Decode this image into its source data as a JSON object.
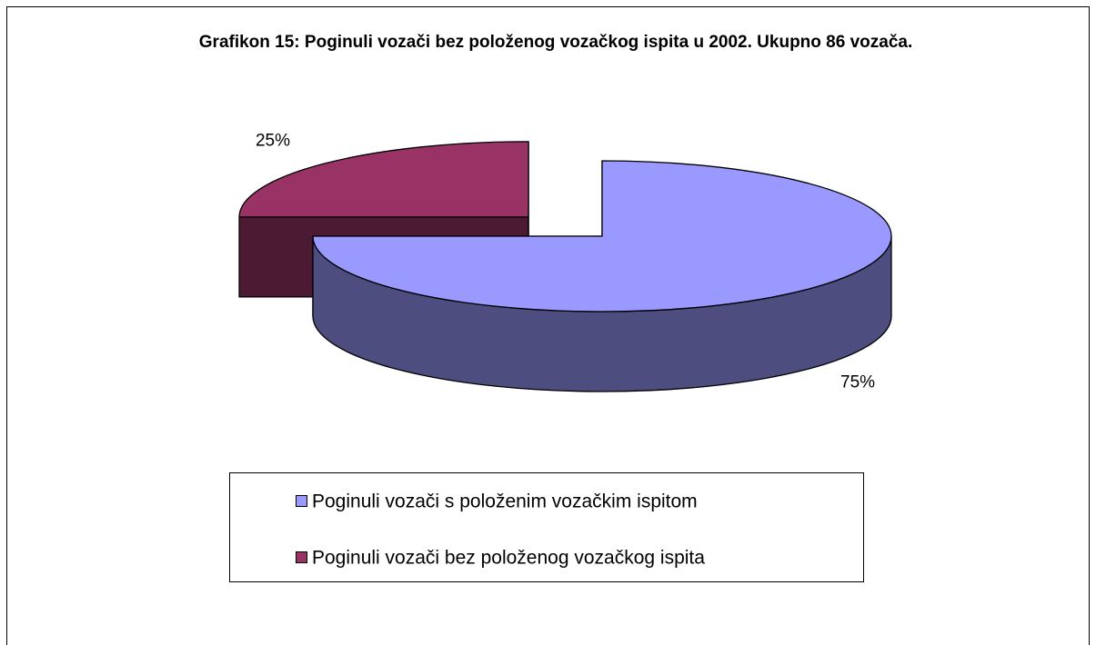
{
  "chart_data": {
    "type": "pie",
    "title": "Grafikon 15: Poginuli vozači bez položenog vozačkog ispita u 2002. Ukupno 86 vozača.",
    "categories": [
      "Poginuli vozači s položenim vozačkim ispitom",
      "Poginuli vozači bez položenog vozačkog ispita"
    ],
    "values": [
      75,
      25
    ],
    "value_labels": [
      "75%",
      "25%"
    ],
    "colors": [
      "#9999ff",
      "#993366"
    ],
    "legend": "bottom"
  }
}
